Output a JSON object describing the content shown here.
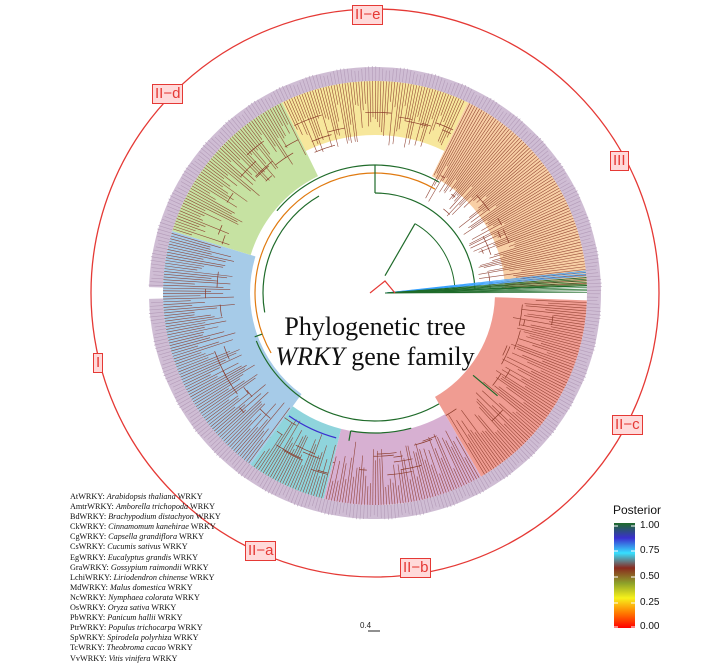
{
  "title_lines": [
    "Phylogenetic tree",
    "WRKY"
  ],
  "title_suffix": "gene family",
  "clades": [
    {
      "label": "II−e",
      "color": "#f7e79c"
    },
    {
      "label": "III",
      "color": "#f8cfa5"
    },
    {
      "label": "II−c",
      "color": "#f09c92"
    },
    {
      "label": "II−b",
      "color": "#d7b0d2"
    },
    {
      "label": "II−a",
      "color": "#8fd4dc"
    },
    {
      "label": "I",
      "color": "#a6cbe8"
    },
    {
      "label": "II−d",
      "color": "#c6e2a2"
    }
  ],
  "species": [
    {
      "code": "AtWRKY:",
      "name": "Arabidopsis thaliana",
      "suffix": "WRKY"
    },
    {
      "code": "AmtrWRKY:",
      "name": "Amborella trichopoda",
      "suffix": "WRKY"
    },
    {
      "code": "BdWRKY:",
      "name": "Brachypodium distachyon",
      "suffix": "WRKY"
    },
    {
      "code": "CkWRKY:",
      "name": "Cinnamomum kanehirae",
      "suffix": "WRKY"
    },
    {
      "code": "CgWRKY:",
      "name": "Capsella grandiflora",
      "suffix": "WRKY"
    },
    {
      "code": "CsWRKY:",
      "name": "Cucumis sativus",
      "suffix": "WRKY"
    },
    {
      "code": "EgWRKY:",
      "name": "Eucalyptus grandis",
      "suffix": "WRKY"
    },
    {
      "code": "GraWRKY:",
      "name": "Gossypium raimondii",
      "suffix": "WRKY"
    },
    {
      "code": "LchiWRKY:",
      "name": "Liriodendron chinense",
      "suffix": "WRKY"
    },
    {
      "code": "MdWRKY:",
      "name": "Malus domestica",
      "suffix": "WRKY"
    },
    {
      "code": "NcWRKY:",
      "name": "Nymphaea colorata",
      "suffix": "WRKY"
    },
    {
      "code": "OsWRKY:",
      "name": "Oryza sativa",
      "suffix": "WRKY"
    },
    {
      "code": "PbWRKY:",
      "name": "Panicum hallii",
      "suffix": "WRKY"
    },
    {
      "code": "PtrWRKY:",
      "name": "Populus trichocarpa",
      "suffix": "WRKY"
    },
    {
      "code": "SpWRKY:",
      "name": "Spirodela polyrhiza",
      "suffix": "WRKY"
    },
    {
      "code": "TcWRKY:",
      "name": "Theobroma cacao",
      "suffix": "WRKY"
    },
    {
      "code": "VvWRKY:",
      "name": "Vitis vinifera",
      "suffix": "WRKY"
    }
  ],
  "scale_bar": "0.4",
  "colorbar": {
    "title": "Posterior",
    "ticks": [
      "1.00",
      "0.75",
      "0.50",
      "0.25",
      "0.00"
    ],
    "colors": [
      "#1f6b2a",
      "#3a2fd0",
      "#36e0ff",
      "#8a2a1e",
      "#8ca02a",
      "#f7f21b",
      "#ff7a00",
      "#ff0000"
    ]
  },
  "colors": {
    "ring": "#e53935",
    "label_fill": "#ffdada",
    "tips": "#c7b2cc",
    "branch": "#8a3a2a",
    "backbone": "#1f6b2a",
    "orange_branch": "#e07a10"
  }
}
